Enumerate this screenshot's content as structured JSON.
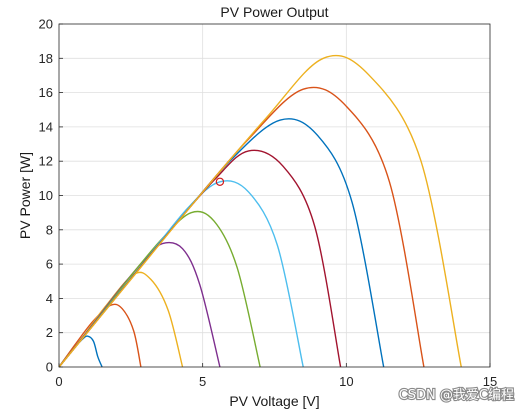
{
  "chart_data": {
    "type": "line",
    "title": "PV Power Output",
    "xlabel": "PV Voltage [V]",
    "ylabel": "PV Power [W]",
    "xlim": [
      0,
      15
    ],
    "ylim": [
      0,
      20
    ],
    "xticks": [
      0,
      5,
      10,
      15
    ],
    "yticks": [
      0,
      2,
      4,
      6,
      8,
      10,
      12,
      14,
      16,
      18,
      20
    ],
    "grid": true,
    "series": [
      {
        "color": "#0072BD",
        "x": [
          0,
          0.4,
          0.8,
          1.0,
          1.2,
          1.35,
          1.5
        ],
        "y": [
          0,
          0.9,
          1.6,
          1.8,
          1.5,
          0.6,
          0
        ]
      },
      {
        "color": "#D95319",
        "x": [
          0,
          0.6,
          1.2,
          1.8,
          2.2,
          2.6,
          2.85
        ],
        "y": [
          0,
          1.4,
          2.7,
          3.6,
          3.4,
          2.1,
          0
        ]
      },
      {
        "color": "#EDB120",
        "x": [
          0,
          0.8,
          1.6,
          2.6,
          3.2,
          3.8,
          4.3
        ],
        "y": [
          0,
          1.7,
          3.5,
          5.4,
          5.1,
          3.3,
          0
        ]
      },
      {
        "color": "#7E2F8E",
        "x": [
          0,
          1.0,
          2.0,
          3.0,
          3.6,
          4.3,
          4.9,
          5.6
        ],
        "y": [
          0,
          2.1,
          4.3,
          6.3,
          7.2,
          6.9,
          4.8,
          0
        ]
      },
      {
        "color": "#77AC30",
        "x": [
          0,
          1.2,
          2.4,
          3.6,
          4.6,
          5.4,
          6.2,
          7.0
        ],
        "y": [
          0,
          2.5,
          5.1,
          7.5,
          9.0,
          8.5,
          5.8,
          0
        ]
      },
      {
        "color": "#4DBEEE",
        "x": [
          0,
          1.5,
          3.0,
          4.5,
          5.6,
          6.6,
          7.6,
          8.5
        ],
        "y": [
          0,
          3.1,
          6.2,
          9.3,
          10.8,
          10.2,
          7.1,
          0
        ]
      },
      {
        "color": "#A2142F",
        "x": [
          0,
          1.8,
          3.6,
          5.4,
          6.6,
          7.8,
          8.9,
          9.8
        ],
        "y": [
          0,
          3.7,
          7.4,
          10.9,
          12.6,
          11.7,
          8.2,
          0
        ]
      },
      {
        "color": "#0072BD",
        "x": [
          0,
          2.0,
          4.0,
          6.0,
          7.7,
          9.0,
          10.2,
          11.3
        ],
        "y": [
          0,
          4.1,
          8.2,
          12.1,
          14.4,
          13.5,
          9.6,
          0
        ]
      },
      {
        "color": "#D95319",
        "x": [
          0,
          2.2,
          4.4,
          6.6,
          8.5,
          10.0,
          11.5,
          12.7
        ],
        "y": [
          0,
          4.5,
          9.0,
          13.3,
          16.2,
          15.2,
          10.8,
          0
        ]
      },
      {
        "color": "#EDB120",
        "x": [
          0,
          2.4,
          4.8,
          7.2,
          9.2,
          10.8,
          12.6,
          14.0
        ],
        "y": [
          0,
          4.9,
          9.8,
          14.5,
          18.0,
          17.0,
          12.0,
          0
        ]
      }
    ],
    "marker": {
      "x": 5.6,
      "y": 10.8,
      "color": "#d01c1c"
    }
  },
  "watermark": "CSDN @我爱C编程"
}
